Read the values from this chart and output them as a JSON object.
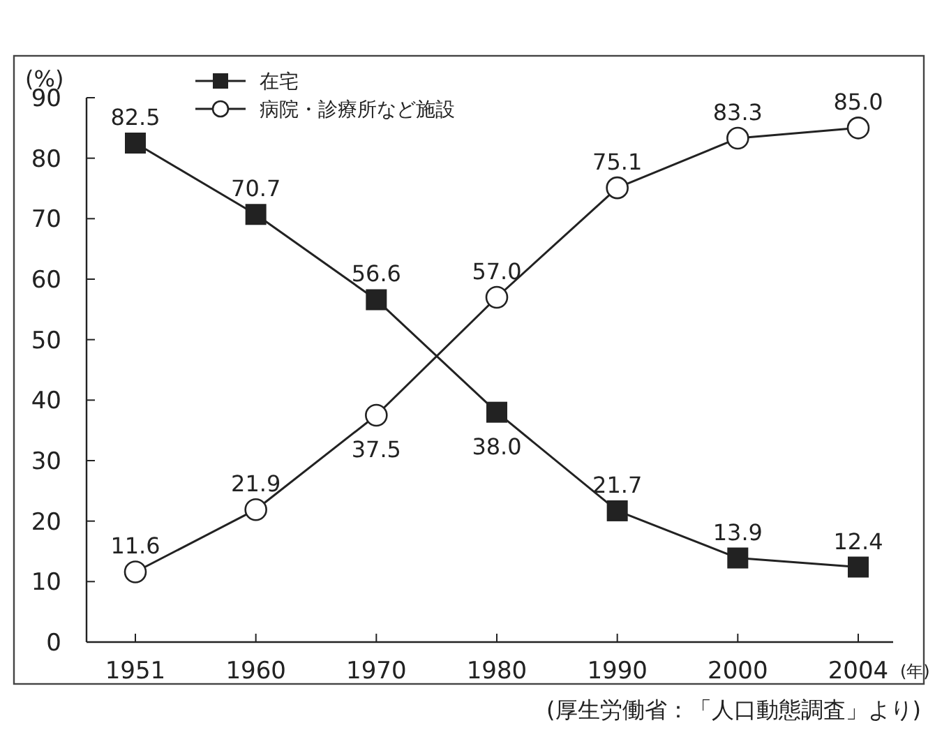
{
  "chart_data": {
    "type": "line",
    "ylabel": "(%)",
    "xlabel": "(年)",
    "categories": [
      "1951",
      "1960",
      "1970",
      "1980",
      "1990",
      "2000",
      "2004"
    ],
    "series": [
      {
        "name": "在宅",
        "color": "#222222",
        "marker": "square",
        "values": [
          82.5,
          70.7,
          56.6,
          38.0,
          21.7,
          13.9,
          12.4
        ],
        "value_labels": [
          "82.5",
          "70.7",
          "56.6",
          "38.0",
          "21.7",
          "13.9",
          "12.4"
        ]
      },
      {
        "name": "病院・診療所など施設",
        "color": "#222222",
        "marker": "circle",
        "values": [
          11.6,
          21.9,
          37.5,
          57.0,
          75.1,
          83.3,
          85.0
        ],
        "value_labels": [
          "11.6",
          "21.9",
          "37.5",
          "57.0",
          "75.1",
          "83.3",
          "85.0"
        ]
      }
    ],
    "ylim": [
      0,
      90
    ],
    "yticks": [
      0,
      10,
      20,
      30,
      40,
      50,
      60,
      70,
      80,
      90
    ],
    "legend": "top left",
    "grid": false,
    "line_style": "solid",
    "annotations": [
      "(厚生労働省：「人口動態調査」より)"
    ]
  }
}
